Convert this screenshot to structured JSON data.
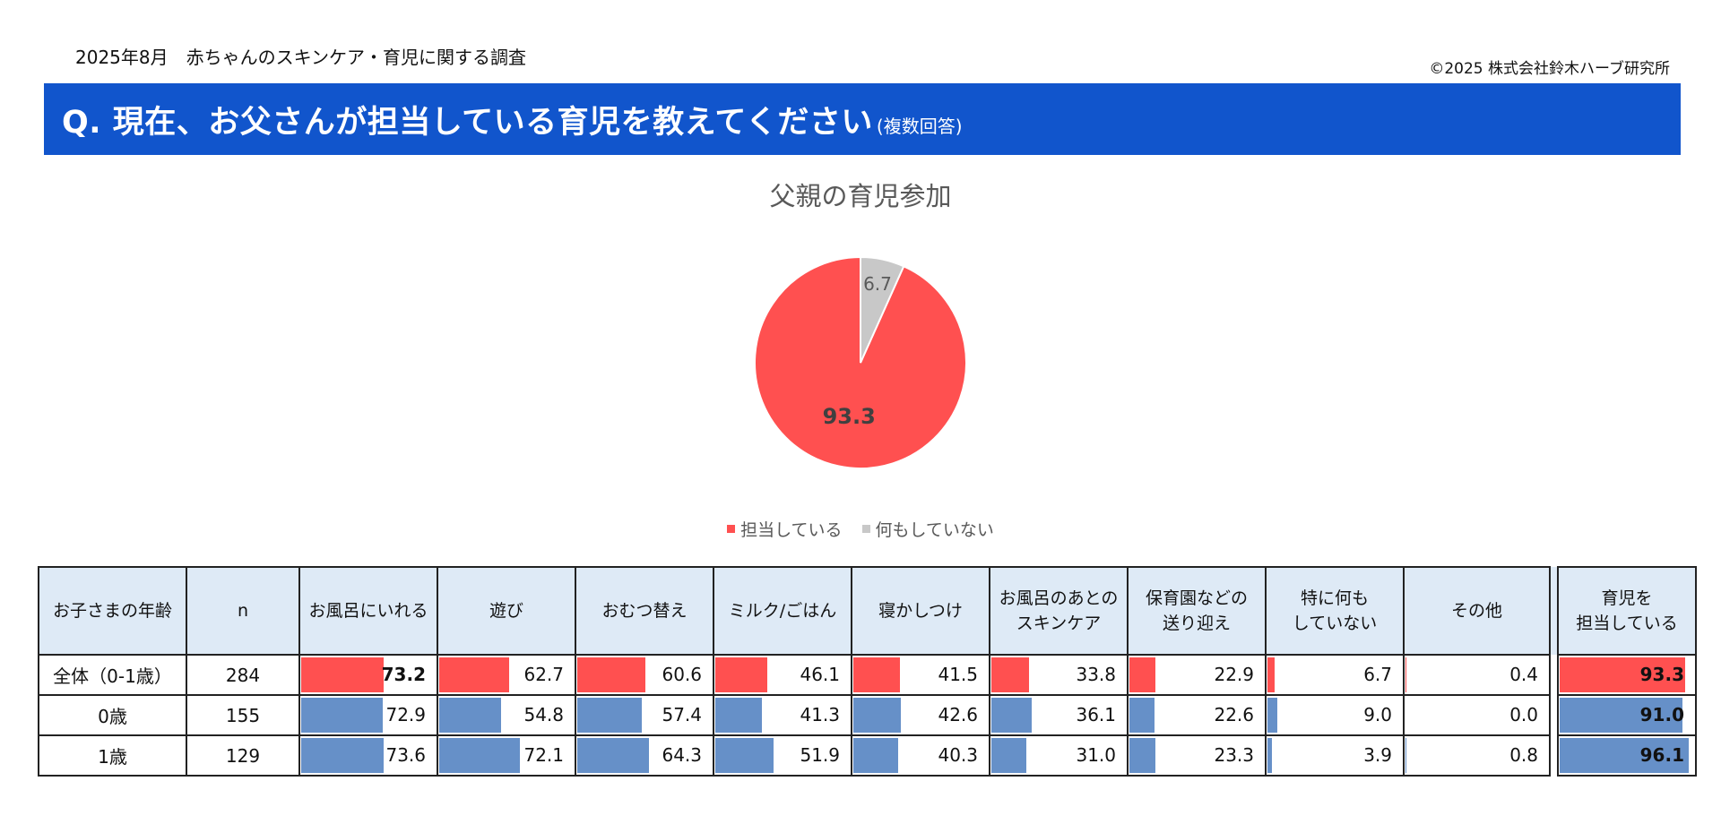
{
  "header": {
    "survey_title": "2025年8月　赤ちゃんのスキンケア・育児に関する調査",
    "copyright": "©2025 株式会社鈴木ハーブ研究所"
  },
  "question": {
    "text": "Q. 現在、お父さんが担当している育児を教えてください",
    "note": "(複数回答)"
  },
  "colors": {
    "banner": "#1155cc",
    "red": "#ff5050",
    "gray": "#c8c8c8",
    "blue": "#6690c8"
  },
  "chart_data": [
    {
      "type": "pie",
      "title": "父親の育児参加",
      "labels": [
        "担当している",
        "何もしていない"
      ],
      "values": [
        93.3,
        6.7
      ],
      "colors": [
        "#ff5050",
        "#c8c8c8"
      ],
      "legend": "bottom"
    },
    {
      "type": "table",
      "headers": [
        "お子さまの年齢",
        "n",
        "お風呂にいれる",
        "遊び",
        "おむつ替え",
        "ミルク/ごはん",
        "寝かしつけ",
        "お風呂のあとの\nスキンケア",
        "保育園などの\n送り迎え",
        "特に何も\nしていない",
        "その他",
        "育児を\n担当している"
      ],
      "rows": [
        {
          "label": "全体（0-1歳）",
          "n": "284",
          "values": [
            "73.2",
            "62.7",
            "60.6",
            "46.1",
            "41.5",
            "33.8",
            "22.9",
            "6.7",
            "0.4"
          ],
          "total": "93.3",
          "color": "red"
        },
        {
          "label": "0歳",
          "n": "155",
          "values": [
            "72.9",
            "54.8",
            "57.4",
            "41.3",
            "42.6",
            "36.1",
            "22.6",
            "9.0",
            "0.0"
          ],
          "total": "91.0",
          "color": "blue"
        },
        {
          "label": "1歳",
          "n": "129",
          "values": [
            "73.6",
            "72.1",
            "64.3",
            "51.9",
            "40.3",
            "31.0",
            "23.3",
            "3.9",
            "0.8"
          ],
          "total": "96.1",
          "color": "blue"
        }
      ]
    }
  ]
}
